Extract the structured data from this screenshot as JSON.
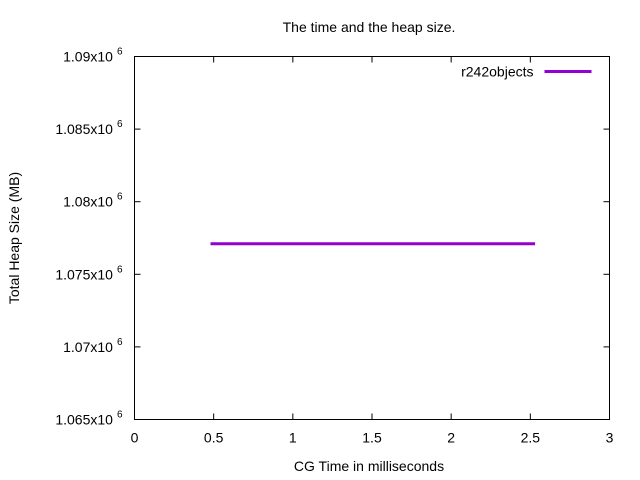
{
  "chart_data": {
    "type": "line",
    "title": "The time and the heap size.",
    "xlabel": "CG Time in milliseconds",
    "ylabel": "Total Heap Size (MB)",
    "xlim": [
      0,
      3
    ],
    "ylim": [
      1065000,
      1090000
    ],
    "x_ticks": [
      {
        "value": 0,
        "label": "0"
      },
      {
        "value": 0.5,
        "label": "0.5"
      },
      {
        "value": 1,
        "label": "1"
      },
      {
        "value": 1.5,
        "label": "1.5"
      },
      {
        "value": 2,
        "label": "2"
      },
      {
        "value": 2.5,
        "label": "2.5"
      },
      {
        "value": 3,
        "label": "3"
      }
    ],
    "y_ticks": [
      {
        "value": 1065000,
        "mantissa": "1.065x10",
        "exp": "6"
      },
      {
        "value": 1070000,
        "mantissa": "1.07x10",
        "exp": "6"
      },
      {
        "value": 1075000,
        "mantissa": "1.075x10",
        "exp": "6"
      },
      {
        "value": 1080000,
        "mantissa": "1.08x10",
        "exp": "6"
      },
      {
        "value": 1085000,
        "mantissa": "1.085x10",
        "exp": "6"
      },
      {
        "value": 1090000,
        "mantissa": "1.09x10",
        "exp": "6"
      }
    ],
    "legend_position": "top-right",
    "grid": false,
    "series": [
      {
        "name": "r242objects",
        "color": "#9400d3",
        "x": [
          0.48,
          2.53
        ],
        "y": [
          1077100,
          1077100
        ]
      }
    ]
  }
}
